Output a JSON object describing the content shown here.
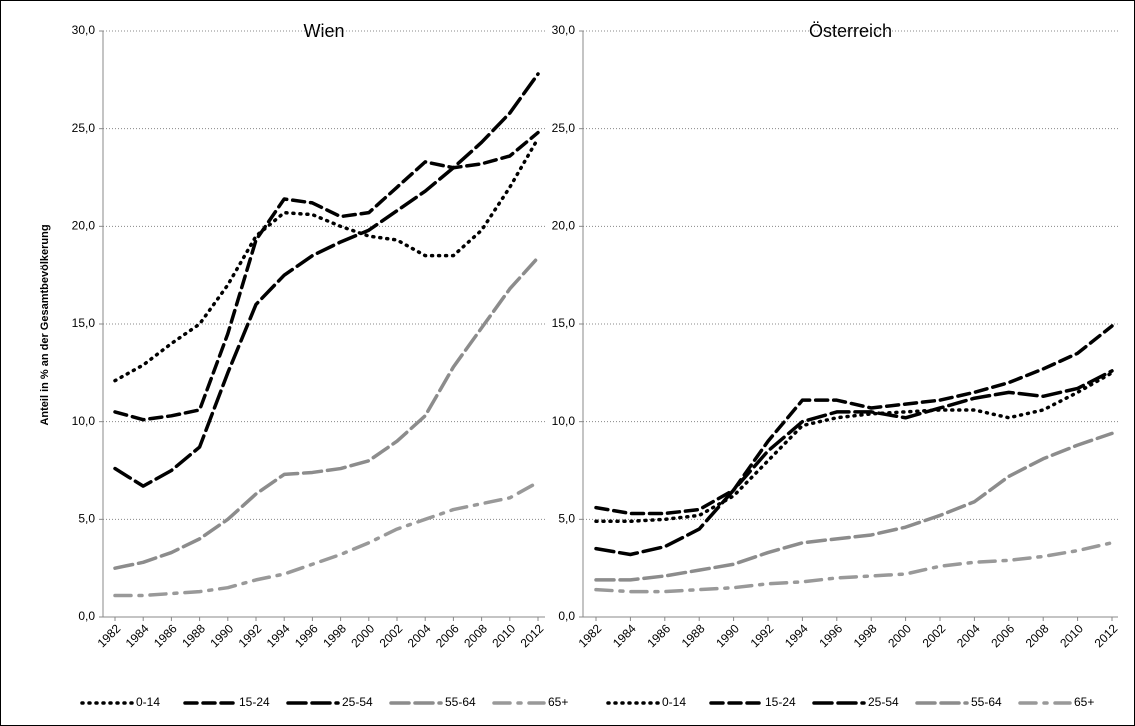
{
  "chart_data": [
    {
      "type": "line",
      "title": "Wien",
      "ylabel": "Anteil in % an der Gesamtbevölkerung",
      "x": [
        1982,
        1984,
        1986,
        1988,
        1990,
        1992,
        1994,
        1996,
        1998,
        2000,
        2002,
        2004,
        2006,
        2008,
        2010,
        2012
      ],
      "xlim": [
        1982,
        2012
      ],
      "xticks": [
        1982,
        1984,
        1986,
        1988,
        1990,
        1992,
        1994,
        1996,
        1998,
        2000,
        2002,
        2004,
        2006,
        2008,
        2010,
        2012
      ],
      "ylim": [
        0,
        30
      ],
      "yticks": [
        {
          "value": 0,
          "label": "0,0"
        },
        {
          "value": 5,
          "label": "5,0"
        },
        {
          "value": 10,
          "label": "10,0"
        },
        {
          "value": 15,
          "label": "15,0"
        },
        {
          "value": 20,
          "label": "20,0"
        },
        {
          "value": 25,
          "label": "25,0"
        },
        {
          "value": 30,
          "label": "30,0"
        }
      ],
      "grid": true,
      "series": [
        {
          "name": "0-14",
          "color": "#000000",
          "dash": "1 6",
          "values": [
            12.1,
            12.9,
            14.0,
            15.0,
            17.0,
            19.5,
            20.7,
            20.6,
            20.0,
            19.5,
            19.3,
            18.5,
            18.5,
            19.8,
            22.0,
            24.5
          ]
        },
        {
          "name": "15-24",
          "color": "#000000",
          "dash": "12 6",
          "values": [
            10.5,
            10.1,
            10.3,
            10.6,
            14.5,
            19.3,
            21.4,
            21.2,
            20.5,
            20.7,
            22.0,
            23.3,
            23.0,
            23.2,
            23.6,
            24.8
          ]
        },
        {
          "name": "25-54",
          "color": "#000000",
          "dash": "18 6",
          "values": [
            7.6,
            6.7,
            7.5,
            8.7,
            12.5,
            16.0,
            17.5,
            18.5,
            19.2,
            19.8,
            20.8,
            21.8,
            23.0,
            24.3,
            25.8,
            27.8
          ]
        },
        {
          "name": "55-64",
          "color": "#8c8c8c",
          "dash": "18 6",
          "values": [
            2.5,
            2.8,
            3.3,
            4.0,
            5.0,
            6.3,
            7.3,
            7.4,
            7.6,
            8.0,
            9.0,
            10.3,
            12.8,
            14.8,
            16.8,
            18.4
          ]
        },
        {
          "name": "65+",
          "color": "#999999",
          "dash": "16 8 3 8",
          "values": [
            1.1,
            1.1,
            1.2,
            1.3,
            1.5,
            1.9,
            2.2,
            2.7,
            3.2,
            3.8,
            4.5,
            5.0,
            5.5,
            5.8,
            6.1,
            6.9
          ]
        }
      ]
    },
    {
      "type": "line",
      "title": "Österreich",
      "x": [
        1982,
        1984,
        1986,
        1988,
        1990,
        1992,
        1994,
        1996,
        1998,
        2000,
        2002,
        2004,
        2006,
        2008,
        2010,
        2012
      ],
      "xlim": [
        1982,
        2012
      ],
      "xticks": [
        1982,
        1984,
        1986,
        1988,
        1990,
        1992,
        1994,
        1996,
        1998,
        2000,
        2002,
        2004,
        2006,
        2008,
        2010,
        2012
      ],
      "ylim": [
        0,
        30
      ],
      "yticks": [
        {
          "value": 0,
          "label": "0,0"
        },
        {
          "value": 5,
          "label": "5,0"
        },
        {
          "value": 10,
          "label": "10,0"
        },
        {
          "value": 15,
          "label": "15,0"
        },
        {
          "value": 20,
          "label": "20,0"
        },
        {
          "value": 25,
          "label": "25,0"
        },
        {
          "value": 30,
          "label": "30,0"
        }
      ],
      "grid": true,
      "series": [
        {
          "name": "0-14",
          "color": "#000000",
          "dash": "1 6",
          "values": [
            4.9,
            4.9,
            5.0,
            5.2,
            6.2,
            8.0,
            9.8,
            10.2,
            10.4,
            10.5,
            10.6,
            10.6,
            10.2,
            10.6,
            11.5,
            12.5
          ]
        },
        {
          "name": "15-24",
          "color": "#000000",
          "dash": "12 6",
          "values": [
            5.6,
            5.3,
            5.3,
            5.5,
            6.5,
            9.0,
            11.1,
            11.1,
            10.7,
            10.9,
            11.1,
            11.5,
            12.0,
            12.7,
            13.5,
            14.9
          ]
        },
        {
          "name": "25-54",
          "color": "#000000",
          "dash": "18 6",
          "values": [
            3.5,
            3.2,
            3.6,
            4.5,
            6.5,
            8.5,
            10.0,
            10.5,
            10.5,
            10.2,
            10.7,
            11.2,
            11.5,
            11.3,
            11.7,
            12.6
          ]
        },
        {
          "name": "55-64",
          "color": "#8c8c8c",
          "dash": "18 6",
          "values": [
            1.9,
            1.9,
            2.1,
            2.4,
            2.7,
            3.3,
            3.8,
            4.0,
            4.2,
            4.6,
            5.2,
            5.9,
            7.2,
            8.1,
            8.8,
            9.4
          ]
        },
        {
          "name": "65+",
          "color": "#999999",
          "dash": "16 8 3 8",
          "values": [
            1.4,
            1.3,
            1.3,
            1.4,
            1.5,
            1.7,
            1.8,
            2.0,
            2.1,
            2.2,
            2.6,
            2.8,
            2.9,
            3.1,
            3.4,
            3.8
          ]
        }
      ]
    }
  ]
}
